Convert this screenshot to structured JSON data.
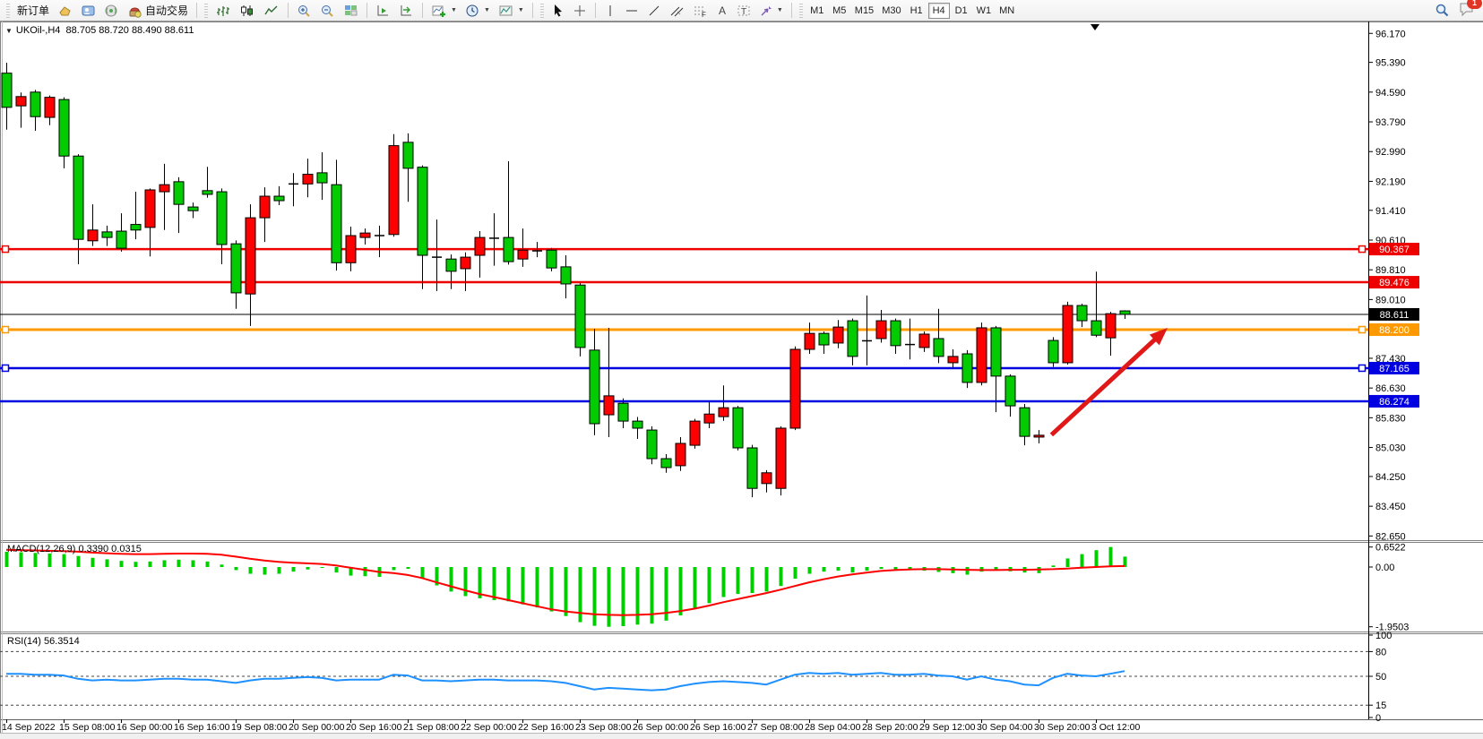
{
  "toolbar": {
    "new_order": "新订单",
    "auto_trading": "自动交易",
    "timeframes": [
      "M1",
      "M5",
      "M15",
      "M30",
      "H1",
      "H4",
      "D1",
      "W1",
      "MN"
    ],
    "active_timeframe": "H4",
    "notification_count": "1"
  },
  "chart_data": {
    "type": "candlestick",
    "symbol": "UKOil-",
    "timeframe": "H4",
    "symbol_line": "UKOil-,H4  88.705 88.720 88.490 88.611",
    "quote": {
      "open": "88.705",
      "high": "88.720",
      "low": "88.490",
      "close": "88.611"
    },
    "bull_color": "#ff0000",
    "bear_color": "#00cc00",
    "note": "Chinese color convention: red = bullish, green = bearish",
    "candles_ohlc": [
      [
        95.1,
        95.38,
        93.58,
        94.18
      ],
      [
        94.22,
        94.58,
        93.63,
        94.47
      ],
      [
        94.59,
        94.65,
        93.55,
        93.93
      ],
      [
        93.91,
        94.5,
        93.7,
        94.45
      ],
      [
        94.39,
        94.45,
        92.54,
        92.87
      ],
      [
        92.87,
        92.92,
        89.96,
        90.63
      ],
      [
        90.59,
        91.57,
        90.45,
        90.88
      ],
      [
        90.83,
        91.0,
        90.45,
        90.68
      ],
      [
        90.85,
        91.33,
        90.3,
        90.39
      ],
      [
        91.03,
        91.91,
        90.63,
        90.88
      ],
      [
        90.95,
        92.0,
        90.17,
        91.96
      ],
      [
        91.91,
        92.66,
        90.88,
        92.1
      ],
      [
        92.18,
        92.3,
        90.8,
        91.57
      ],
      [
        91.5,
        91.62,
        91.2,
        91.4
      ],
      [
        91.94,
        92.58,
        91.75,
        91.84
      ],
      [
        91.91,
        92.0,
        89.96,
        90.49
      ],
      [
        90.51,
        90.6,
        88.76,
        89.19
      ],
      [
        89.16,
        91.57,
        88.3,
        91.21
      ],
      [
        91.21,
        92.03,
        90.56,
        91.79
      ],
      [
        91.79,
        92.06,
        91.55,
        91.67
      ],
      [
        92.12,
        92.41,
        91.52,
        92.12
      ],
      [
        92.12,
        92.8,
        91.76,
        92.38
      ],
      [
        92.42,
        92.97,
        91.69,
        92.15
      ],
      [
        92.1,
        92.77,
        89.79,
        90.0
      ],
      [
        90.0,
        90.97,
        89.77,
        90.73
      ],
      [
        90.68,
        90.92,
        90.49,
        90.8
      ],
      [
        90.73,
        91.0,
        90.15,
        90.73
      ],
      [
        90.76,
        93.46,
        90.7,
        93.15
      ],
      [
        93.24,
        93.48,
        91.64,
        92.54
      ],
      [
        92.57,
        92.62,
        89.29,
        90.2
      ],
      [
        90.15,
        91.16,
        89.24,
        90.15
      ],
      [
        90.1,
        90.22,
        89.29,
        89.77
      ],
      [
        89.84,
        90.28,
        89.24,
        90.15
      ],
      [
        90.2,
        90.85,
        89.6,
        90.68
      ],
      [
        90.66,
        91.33,
        89.92,
        90.66
      ],
      [
        90.68,
        92.73,
        89.95,
        90.03
      ],
      [
        90.1,
        90.92,
        89.89,
        90.34
      ],
      [
        90.32,
        90.56,
        90.15,
        90.32
      ],
      [
        90.34,
        90.4,
        89.77,
        89.86
      ],
      [
        89.89,
        90.2,
        89.04,
        89.43
      ],
      [
        89.4,
        89.45,
        87.48,
        87.72
      ],
      [
        87.65,
        88.22,
        85.36,
        85.67
      ],
      [
        85.91,
        88.25,
        85.31,
        86.42
      ],
      [
        86.22,
        86.35,
        85.55,
        85.74
      ],
      [
        85.74,
        85.85,
        85.26,
        85.55
      ],
      [
        85.5,
        85.6,
        84.58,
        84.73
      ],
      [
        84.73,
        84.85,
        84.35,
        84.49
      ],
      [
        84.54,
        85.31,
        84.4,
        85.14
      ],
      [
        85.09,
        85.8,
        85.0,
        85.74
      ],
      [
        85.69,
        86.27,
        85.55,
        85.93
      ],
      [
        85.86,
        86.7,
        85.75,
        86.1
      ],
      [
        86.1,
        86.15,
        84.95,
        85.02
      ],
      [
        85.02,
        85.1,
        83.69,
        83.93
      ],
      [
        84.06,
        84.42,
        83.82,
        84.35
      ],
      [
        83.93,
        85.6,
        83.74,
        85.55
      ],
      [
        85.55,
        87.75,
        85.5,
        87.67
      ],
      [
        87.67,
        88.39,
        87.55,
        88.1
      ],
      [
        88.1,
        88.15,
        87.55,
        87.79
      ],
      [
        87.84,
        88.46,
        87.7,
        88.27
      ],
      [
        88.44,
        88.5,
        87.24,
        87.48
      ],
      [
        87.9,
        89.12,
        87.24,
        87.9
      ],
      [
        87.96,
        88.73,
        87.85,
        88.44
      ],
      [
        88.44,
        88.5,
        87.55,
        87.77
      ],
      [
        87.8,
        88.5,
        87.4,
        87.8
      ],
      [
        87.72,
        88.15,
        87.6,
        88.08
      ],
      [
        87.96,
        88.76,
        87.3,
        87.48
      ],
      [
        87.31,
        87.67,
        87.14,
        87.48
      ],
      [
        87.55,
        87.65,
        86.63,
        86.78
      ],
      [
        86.78,
        88.39,
        86.7,
        88.25
      ],
      [
        88.25,
        88.3,
        85.98,
        86.95
      ],
      [
        86.95,
        87.0,
        85.86,
        86.15
      ],
      [
        86.1,
        86.2,
        85.09,
        85.33
      ],
      [
        85.31,
        85.5,
        85.14,
        85.36
      ],
      [
        87.91,
        88.0,
        87.2,
        87.31
      ],
      [
        87.31,
        88.95,
        87.26,
        88.85
      ],
      [
        88.85,
        88.9,
        88.27,
        88.44
      ],
      [
        88.44,
        89.76,
        88.0,
        88.05
      ],
      [
        87.98,
        88.68,
        87.5,
        88.63
      ],
      [
        88.705,
        88.72,
        88.49,
        88.611
      ]
    ],
    "time_labels": [
      "14 Sep 2022",
      "15 Sep 08:00",
      "16 Sep 00:00",
      "16 Sep 16:00",
      "19 Sep 08:00",
      "20 Sep 00:00",
      "20 Sep 16:00",
      "21 Sep 08:00",
      "22 Sep 00:00",
      "22 Sep 16:00",
      "23 Sep 08:00",
      "26 Sep 00:00",
      "26 Sep 16:00",
      "27 Sep 08:00",
      "28 Sep 04:00",
      "28 Sep 20:00",
      "29 Sep 12:00",
      "30 Sep 04:00",
      "30 Sep 20:00",
      "3 Oct 12:00"
    ],
    "price_ticks": [
      "96.170",
      "95.390",
      "94.590",
      "93.790",
      "92.990",
      "92.190",
      "91.410",
      "90.610",
      "89.810",
      "89.010",
      "87.430",
      "86.630",
      "85.830",
      "85.030",
      "84.250",
      "83.450",
      "82.650"
    ],
    "hlines": [
      {
        "price": 90.367,
        "label": "90.367",
        "color": "#ee0000",
        "width": 2.5,
        "handles": true
      },
      {
        "price": 89.476,
        "label": "89.476",
        "color": "#ee0000",
        "width": 2.5,
        "handles": false
      },
      {
        "price": 88.611,
        "label": "88.611",
        "color": "#000000",
        "width": 1,
        "handles": false
      },
      {
        "price": 88.2,
        "label": "88.200",
        "color": "#ff9900",
        "width": 3,
        "handles": true
      },
      {
        "price": 87.165,
        "label": "87.165",
        "color": "#0000e0",
        "width": 2.5,
        "handles": true
      },
      {
        "price": 86.274,
        "label": "86.274",
        "color": "#0000e0",
        "width": 2.5,
        "handles": false
      }
    ],
    "macd": {
      "label": "MACD(12,26,9) 0.3390 0.0315",
      "params": "12,26,9",
      "current_hist": "0.3390",
      "current_signal": "0.0315",
      "axis_ticks": [
        "0.6522",
        "0.00",
        "-1.9503"
      ],
      "hist_color": "#00cc00",
      "signal_color": "#ff0000",
      "hist": [
        0.5,
        0.48,
        0.46,
        0.44,
        0.42,
        0.36,
        0.3,
        0.25,
        0.2,
        0.17,
        0.18,
        0.22,
        0.24,
        0.22,
        0.18,
        0.08,
        -0.1,
        -0.22,
        -0.25,
        -0.22,
        -0.15,
        -0.08,
        -0.03,
        -0.18,
        -0.28,
        -0.3,
        -0.32,
        -0.1,
        -0.06,
        -0.38,
        -0.6,
        -0.8,
        -0.95,
        -1.02,
        -1.08,
        -1.12,
        -1.22,
        -1.32,
        -1.45,
        -1.6,
        -1.8,
        -1.92,
        -1.9503,
        -1.93,
        -1.88,
        -1.85,
        -1.75,
        -1.58,
        -1.38,
        -1.18,
        -0.98,
        -0.88,
        -0.85,
        -0.8,
        -0.62,
        -0.38,
        -0.22,
        -0.15,
        -0.12,
        -0.18,
        -0.12,
        -0.06,
        -0.08,
        -0.1,
        -0.12,
        -0.16,
        -0.2,
        -0.25,
        -0.15,
        -0.1,
        -0.14,
        -0.18,
        -0.2,
        0.05,
        0.28,
        0.42,
        0.55,
        0.6522,
        0.339
      ],
      "signal": [
        0.56,
        0.55,
        0.54,
        0.53,
        0.52,
        0.5,
        0.47,
        0.45,
        0.43,
        0.42,
        0.42,
        0.43,
        0.44,
        0.44,
        0.43,
        0.4,
        0.34,
        0.27,
        0.21,
        0.17,
        0.14,
        0.12,
        0.1,
        0.05,
        -0.02,
        -0.09,
        -0.16,
        -0.2,
        -0.26,
        -0.36,
        -0.5,
        -0.63,
        -0.76,
        -0.88,
        -0.98,
        -1.08,
        -1.18,
        -1.28,
        -1.38,
        -1.45,
        -1.5,
        -1.54,
        -1.56,
        -1.57,
        -1.56,
        -1.54,
        -1.5,
        -1.44,
        -1.36,
        -1.26,
        -1.15,
        -1.05,
        -0.95,
        -0.85,
        -0.74,
        -0.62,
        -0.5,
        -0.4,
        -0.31,
        -0.24,
        -0.18,
        -0.13,
        -0.1,
        -0.08,
        -0.07,
        -0.07,
        -0.08,
        -0.09,
        -0.1,
        -0.1,
        -0.09,
        -0.09,
        -0.08,
        -0.07,
        -0.05,
        -0.02,
        0.0,
        0.02,
        0.0315
      ]
    },
    "rsi": {
      "label": "RSI(14) 56.3514",
      "period": "14",
      "current": "56.3514",
      "axis_ticks": [
        "100",
        "80",
        "50",
        "15",
        "0"
      ],
      "levels": [
        80,
        50,
        15
      ],
      "line_color": "#1e90ff",
      "values": [
        53,
        53,
        52,
        52,
        51,
        47,
        45,
        46,
        45,
        45,
        46,
        47,
        47,
        46,
        46,
        44,
        42,
        45,
        47,
        47,
        48,
        49,
        48,
        45,
        46,
        46,
        46,
        52,
        51,
        45,
        45,
        44,
        45,
        46,
        46,
        45,
        45,
        45,
        44,
        42,
        38,
        34,
        36,
        35,
        34,
        33,
        34,
        38,
        41,
        43,
        44,
        43,
        42,
        40,
        46,
        52,
        54,
        53,
        54,
        52,
        53,
        54,
        52,
        52,
        53,
        51,
        50,
        46,
        50,
        46,
        44,
        40,
        39,
        48,
        53,
        51,
        50,
        53,
        56.35
      ]
    },
    "arrow_annotation": {
      "from_bar": 72.9,
      "from_price": 85.37,
      "to_bar": 81,
      "to_price": 88.25,
      "color": "#e01818"
    }
  }
}
